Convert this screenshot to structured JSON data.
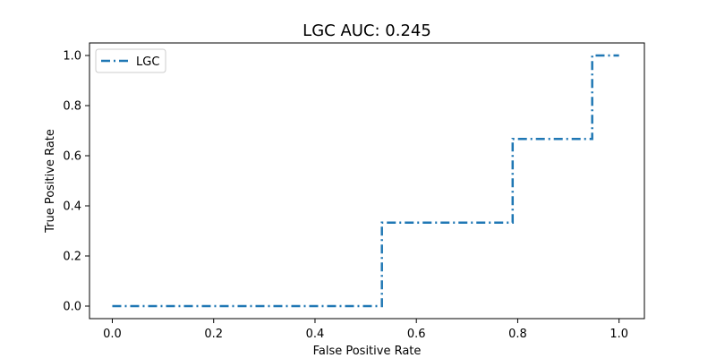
{
  "chart_data": {
    "type": "line",
    "title": "LGC AUC: 0.245",
    "xlabel": "False Positive Rate",
    "ylabel": "True Positive Rate",
    "xlim": [
      -0.045,
      1.05
    ],
    "ylim": [
      -0.05,
      1.05
    ],
    "xticks": [
      0.0,
      0.2,
      0.4,
      0.6,
      0.8,
      1.0
    ],
    "xtick_labels": [
      "0.0",
      "0.2",
      "0.4",
      "0.6",
      "0.8",
      "1.0"
    ],
    "yticks": [
      0.0,
      0.2,
      0.4,
      0.6,
      0.8,
      1.0
    ],
    "ytick_labels": [
      "0.0",
      "0.2",
      "0.4",
      "0.6",
      "0.8",
      "1.0"
    ],
    "grid": false,
    "legend_position": "top-left",
    "series": [
      {
        "name": "LGC",
        "color": "#1f77b4",
        "linestyle": "dashdot",
        "x": [
          0.0,
          0.532,
          0.532,
          0.79,
          0.79,
          0.947,
          0.947,
          1.0
        ],
        "y": [
          0.0,
          0.0,
          0.333,
          0.333,
          0.667,
          0.667,
          1.0,
          1.0
        ]
      }
    ]
  }
}
